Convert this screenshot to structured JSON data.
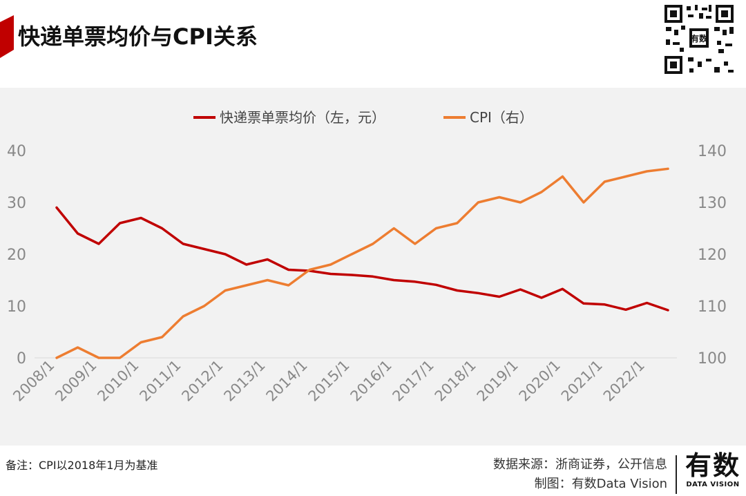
{
  "header": {
    "title": "快递单票均价与CPI关系",
    "accent_color": "#c00000",
    "qr_icon": "qr-code"
  },
  "legend": {
    "series1": "快递票单票均价（左，元）",
    "series2": "CPI（右）"
  },
  "chart_data": {
    "type": "line",
    "title": "快递单票均价与CPI关系",
    "xlabel": "",
    "ylabel_left": "",
    "ylabel_right": "",
    "x_tick_labels": [
      "2008/1",
      "2009/1",
      "2010/1",
      "2011/1",
      "2012/1",
      "2013/1",
      "2014/1",
      "2015/1",
      "2016/1",
      "2017/1",
      "2018/1",
      "2019/1",
      "2020/1",
      "2021/1",
      "2022/1"
    ],
    "x_points": [
      "2008/1",
      "2008/7",
      "2009/1",
      "2009/7",
      "2010/1",
      "2010/7",
      "2011/1",
      "2011/7",
      "2012/1",
      "2012/7",
      "2013/1",
      "2013/7",
      "2014/1",
      "2014/7",
      "2015/1",
      "2015/7",
      "2016/1",
      "2016/7",
      "2017/1",
      "2017/7",
      "2018/1",
      "2018/7",
      "2019/1",
      "2019/7",
      "2020/1",
      "2020/7",
      "2021/1",
      "2021/7",
      "2022/1",
      "2022/7"
    ],
    "series": [
      {
        "name": "快递票单票均价（左，元）",
        "axis": "left",
        "color": "#c00000",
        "values": [
          29,
          24,
          22,
          26,
          27,
          25,
          22,
          21,
          20,
          18,
          19,
          17,
          16.8,
          16.2,
          16,
          15.7,
          15,
          14.7,
          14.1,
          13,
          12.5,
          11.8,
          13.2,
          11.6,
          13.3,
          10.5,
          10.3,
          9.3,
          10.6,
          9.2
        ]
      },
      {
        "name": "CPI（右）",
        "axis": "right",
        "color": "#ed7d31",
        "values": [
          100,
          102,
          100,
          100,
          103,
          104,
          108,
          110,
          113,
          114,
          115,
          114,
          117,
          118,
          120,
          122,
          125,
          122,
          125,
          126,
          130,
          131,
          130,
          132,
          135,
          130,
          134,
          135,
          136,
          136.5
        ]
      }
    ],
    "y_left": {
      "min": 0,
      "max": 40,
      "ticks": [
        0,
        10,
        20,
        30,
        40
      ]
    },
    "y_right": {
      "min": 100,
      "max": 140,
      "ticks": [
        100,
        110,
        120,
        130,
        140
      ]
    },
    "grid": false,
    "legend_position": "top"
  },
  "footer": {
    "note": "备注：CPI以2018年1月为基准",
    "source": "数据来源：浙商证券，公开信息",
    "made_by": "制图：有数Data Vision",
    "brand_cn": "有数",
    "brand_en": "DATA VISION"
  }
}
